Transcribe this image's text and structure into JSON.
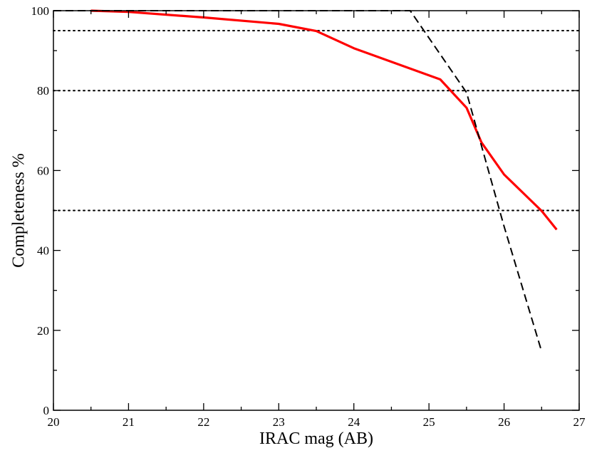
{
  "chart_data": {
    "type": "line",
    "xlabel": "IRAC mag (AB)",
    "ylabel": "Completeness %",
    "xlim": [
      20,
      27
    ],
    "ylim": [
      0,
      100
    ],
    "x_ticks": [
      20,
      21,
      22,
      23,
      24,
      25,
      26,
      27
    ],
    "x_tick_labels": [
      "20",
      "21",
      "22",
      "23",
      "24",
      "25",
      "26",
      "27"
    ],
    "y_ticks": [
      0,
      20,
      40,
      60,
      80,
      100
    ],
    "y_tick_labels": [
      "0",
      "20",
      "40",
      "60",
      "80",
      "100"
    ],
    "x_minor_step": 0.5,
    "y_minor_step": 10,
    "grid": false,
    "reference_lines": [
      {
        "y": 95,
        "style": "dotted",
        "color": "#000000"
      },
      {
        "y": 80,
        "style": "dotted",
        "color": "#000000"
      },
      {
        "y": 50,
        "style": "dotted",
        "color": "#000000"
      }
    ],
    "series": [
      {
        "style": "solid",
        "color": "#ff0000",
        "x": [
          20.5,
          21.0,
          22.0,
          23.0,
          23.5,
          24.0,
          24.5,
          25.15,
          25.5,
          25.7,
          26.0,
          26.5,
          26.7
        ],
        "y": [
          100.0,
          99.7,
          98.3,
          96.7,
          94.9,
          90.6,
          87.2,
          82.8,
          75.7,
          67.0,
          59.0,
          49.9,
          45.2
        ]
      },
      {
        "style": "dashed",
        "color": "#000000",
        "x": [
          20.0,
          24.75,
          25.5,
          26.0,
          26.5
        ],
        "y": [
          100.0,
          100.0,
          79.5,
          46.0,
          14.7
        ]
      }
    ]
  }
}
